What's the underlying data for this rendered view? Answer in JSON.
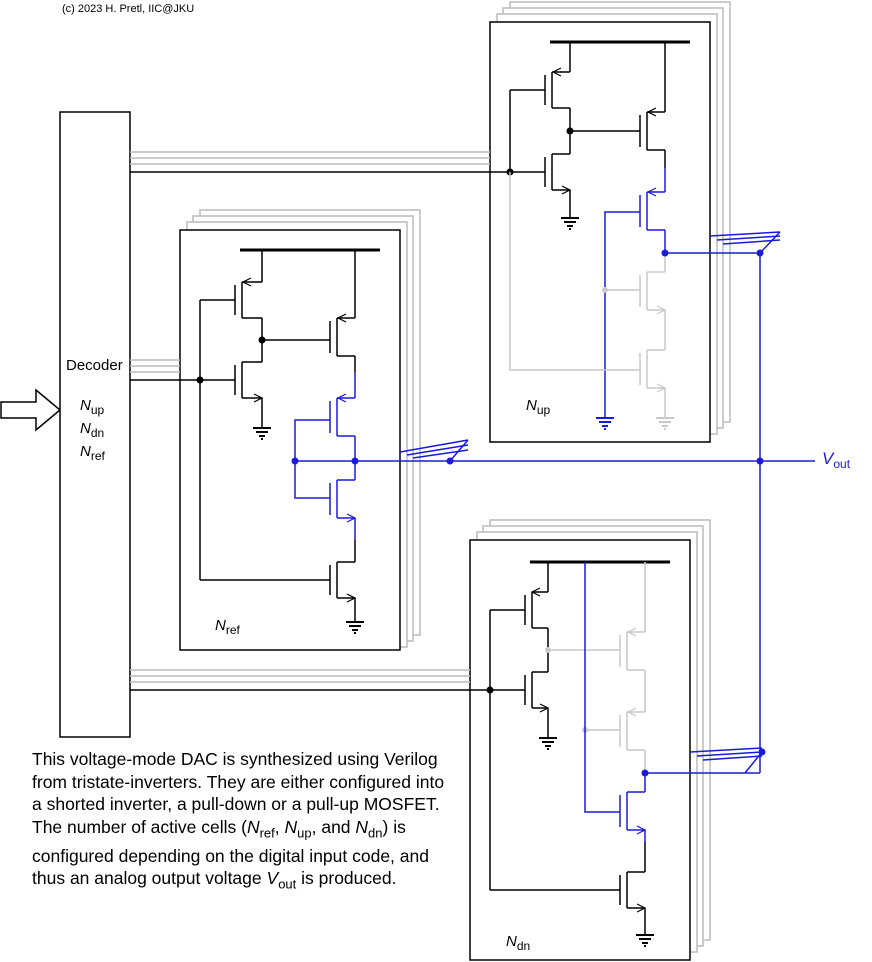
{
  "copyright": "(c) 2023 H. Pretl, IIC@JKU",
  "decoder": {
    "title": "Decoder",
    "outputs": [
      {
        "main": "N",
        "sub": "up"
      },
      {
        "main": "N",
        "sub": "dn"
      },
      {
        "main": "N",
        "sub": "ref"
      }
    ]
  },
  "cells": {
    "ref": {
      "main": "N",
      "sub": "ref"
    },
    "up": {
      "main": "N",
      "sub": "up"
    },
    "dn": {
      "main": "N",
      "sub": "dn"
    }
  },
  "output": {
    "main": "V",
    "sub": "out"
  },
  "description": {
    "p1": "This voltage-mode DAC is synthesized using Verilog from tristate-inverters. They are either configured into a shorted inverter, a pull-down or a pull-up MOSFET. The number of active cells (",
    "n_ref": "ref",
    "p2": ", ",
    "n_up": "up",
    "p3": ", and ",
    "n_dn": "dn",
    "p4": ") is configured depending on the digital input code, and thus an analog output voltage ",
    "v_out": "out",
    "p5": " is produced.",
    "N": "N",
    "V": "V"
  },
  "colors": {
    "active": "#1a1adc",
    "inactive": "#c8c8c8",
    "wire": "#000000"
  }
}
